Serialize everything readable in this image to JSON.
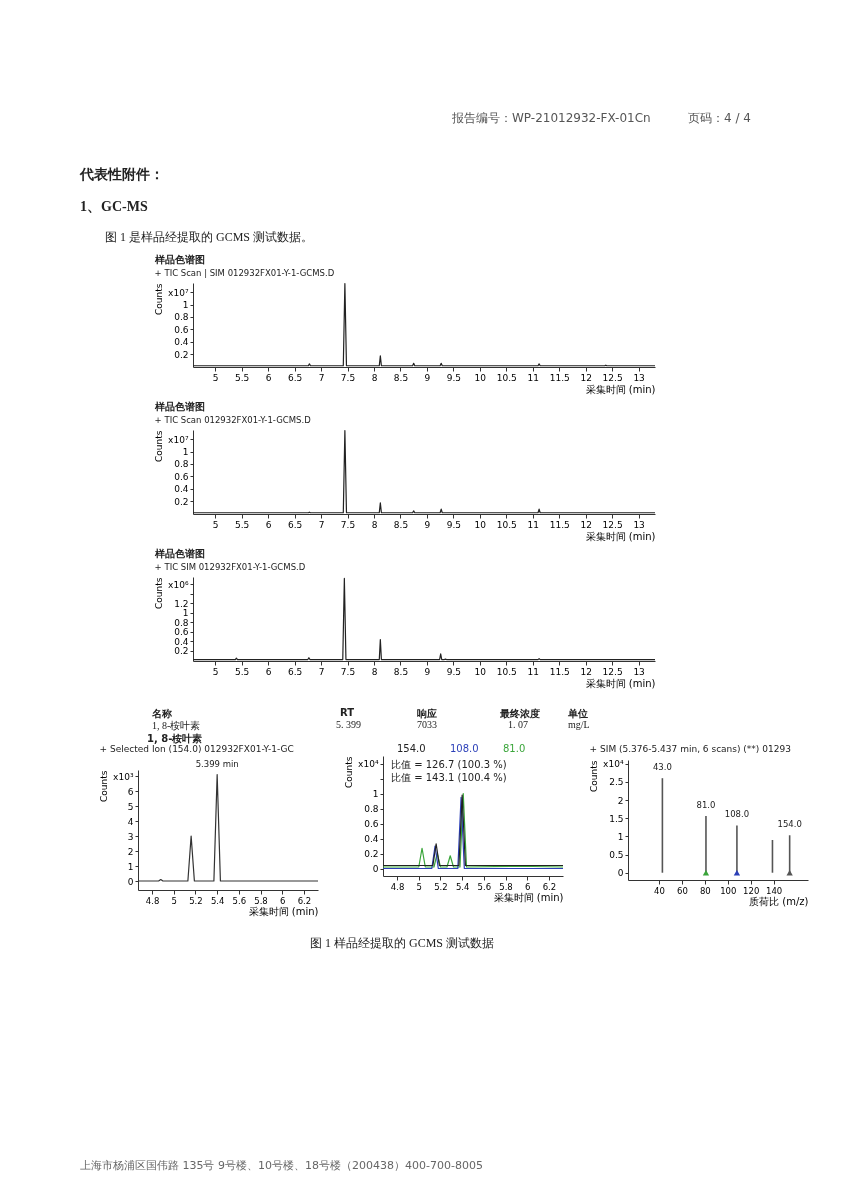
{
  "chart_data": [
    {
      "type": "other",
      "annotations": [
        "报告编号：WP-21012932-FX-01Cn",
        "页码：4 / 4",
        "代表性附件：",
        "1、GC-MS",
        "图 1 是样品经提取的 GCMS 测试数据。"
      ]
    },
    {
      "type": "line",
      "title": "样品色谱图",
      "subtitle": "+ TIC Scan | SIM 012932FX01-Y-1-GCMS.D",
      "ylabel": "Counts",
      "xlabel": "采集时间 (min)",
      "xlim": [
        4.58,
        13.31
      ],
      "xticks": [
        5,
        5.5,
        6,
        6.5,
        7,
        7.5,
        8,
        8.5,
        9,
        9.5,
        10,
        10.5,
        11,
        11.5,
        12,
        12.5,
        13
      ],
      "ylim": [
        -0.01,
        1.35
      ],
      "yticks": [
        0.2,
        0.4,
        0.6,
        0.8,
        1,
        {
          "value": 1.2,
          "label": "x10⁷"
        }
      ],
      "grid": false,
      "x": [
        4.58,
        5,
        5.4,
        6,
        6.76,
        6.78,
        6.8,
        7.42,
        7.45,
        7.48,
        8.1,
        8.12,
        8.14,
        8.73,
        8.75,
        8.77,
        9.25,
        9.27,
        9.29,
        10,
        11.1,
        11.12,
        11.14,
        12.36,
        12.38,
        12.4,
        13.31
      ],
      "series": [
        {
          "color": "#222222",
          "values": [
            0.01,
            0.01,
            0.01,
            0.01,
            0.01,
            0.04,
            0.01,
            0.01,
            1.34,
            0.01,
            0.01,
            0.17,
            0.01,
            0.01,
            0.05,
            0.01,
            0.01,
            0.05,
            0.01,
            0.01,
            0.01,
            0.04,
            0.01,
            0.01,
            0.02,
            0.01,
            0.01
          ]
        }
      ]
    },
    {
      "type": "line",
      "title": "样品色谱图",
      "subtitle": "+ TIC Scan 012932FX01-Y-1-GCMS.D",
      "ylabel": "Counts",
      "xlabel": "采集时间 (min)",
      "xlim": [
        4.58,
        13.31
      ],
      "xticks": [
        5,
        5.5,
        6,
        6.5,
        7,
        7.5,
        8,
        8.5,
        9,
        9.5,
        10,
        10.5,
        11,
        11.5,
        12,
        12.5,
        13
      ],
      "ylim": [
        -0.01,
        1.35
      ],
      "yticks": [
        0.2,
        0.4,
        0.6,
        0.8,
        1,
        {
          "value": 1.2,
          "label": "x10⁷"
        }
      ],
      "grid": false,
      "x": [
        4.58,
        5,
        5.4,
        6,
        6.76,
        6.78,
        6.8,
        7.42,
        7.45,
        7.48,
        8.1,
        8.12,
        8.14,
        8.73,
        8.75,
        8.77,
        9.25,
        9.27,
        9.29,
        10,
        11.1,
        11.12,
        11.14,
        12,
        13.31
      ],
      "series": [
        {
          "color": "#222222",
          "values": [
            0.01,
            0.01,
            0.01,
            0.01,
            0.01,
            0.02,
            0.01,
            0.01,
            1.34,
            0.01,
            0.01,
            0.17,
            0.01,
            0.01,
            0.04,
            0.01,
            0.01,
            0.07,
            0.01,
            0.01,
            0.01,
            0.07,
            0.01,
            0.01,
            0.01
          ]
        }
      ]
    },
    {
      "type": "line",
      "title": "样品色谱图",
      "subtitle": "+ TIC SIM 012932FX01-Y-1-GCMS.D",
      "ylabel": "Counts",
      "xlabel": "采集时间 (min)",
      "xlim": [
        4.58,
        13.31
      ],
      "xticks": [
        5,
        5.5,
        6,
        6.5,
        7,
        7.5,
        8,
        8.5,
        9,
        9.5,
        10,
        10.5,
        11,
        11.5,
        12,
        12.5,
        13
      ],
      "ylim": [
        -0.02,
        1.75
      ],
      "yticks": [
        0.2,
        0.4,
        0.6,
        0.8,
        1,
        1.2,
        {
          "value": 1.4,
          "label": null
        },
        {
          "value": 1.6,
          "label": "x10⁶"
        }
      ],
      "grid": false,
      "x": [
        4.58,
        5,
        5.38,
        5.4,
        5.42,
        6,
        6.75,
        6.77,
        6.79,
        7.41,
        7.44,
        7.47,
        8.1,
        8.12,
        8.14,
        9.24,
        9.26,
        9.28,
        9.33,
        9.35,
        9.37,
        11.1,
        11.12,
        11.14,
        13.31
      ],
      "series": [
        {
          "color": "#222222",
          "values": [
            0.01,
            0.01,
            0.01,
            0.04,
            0.01,
            0.01,
            0.01,
            0.05,
            0.01,
            0.01,
            1.72,
            0.01,
            0.01,
            0.43,
            0.01,
            0.01,
            0.13,
            0.01,
            0.01,
            0.02,
            0.01,
            0.01,
            0.03,
            0.01,
            0.01
          ]
        }
      ]
    },
    {
      "type": "other",
      "annotations": [
        "名称",
        "RT",
        "响应",
        "最终浓度",
        "单位",
        "1, 8-桉叶素",
        "5. 399",
        "7033",
        "1. 07",
        "mg/L",
        "1, 8-桉叶素"
      ]
    },
    {
      "type": "line",
      "title": "+ Selected Ion (154.0) 012932FX01-Y-1-GC",
      "ylabel": "Counts",
      "xlabel": "采集时间 (min)",
      "xlim": [
        4.67,
        6.33
      ],
      "xticks": [
        4.8,
        5,
        5.2,
        5.4,
        5.6,
        5.8,
        6,
        6.2
      ],
      "ylim": [
        -0.6,
        7.4
      ],
      "yticks": [
        0,
        1,
        2,
        3,
        4,
        5,
        6,
        {
          "value": 7,
          "label": "x10³"
        }
      ],
      "grid": false,
      "annotations": [
        {
          "text": "5.399 min",
          "x": 5.4,
          "y": 7.1
        }
      ],
      "x": [
        4.67,
        4.86,
        4.88,
        4.9,
        5.13,
        5.16,
        5.19,
        5.37,
        5.4,
        5.43,
        6.33
      ],
      "series": [
        {
          "color": "#333333",
          "values": [
            0,
            0,
            0.1,
            0,
            0,
            3,
            0,
            0,
            7.1,
            0,
            0
          ]
        }
      ]
    },
    {
      "type": "line",
      "ylabel": "Counts",
      "xlabel": "采集时间 (min)",
      "xlim": [
        4.67,
        6.33
      ],
      "xticks": [
        4.8,
        5,
        5.2,
        5.4,
        5.6,
        5.8,
        6,
        6.2
      ],
      "ylim": [
        -0.1,
        1.5
      ],
      "yticks": [
        0,
        0.2,
        0.4,
        0.6,
        0.8,
        1,
        {
          "value": 1.2,
          "label": null
        },
        {
          "value": 1.4,
          "label": "x10⁴"
        }
      ],
      "grid": false,
      "legend": "top",
      "annotations": [
        "比值 = 126.7 (100.3 %)",
        "比值 = 143.1 (100.4 %)"
      ],
      "series": [
        {
          "name": "154.0",
          "color": "#222222",
          "x": [
            4.67,
            5.13,
            5.16,
            5.19,
            5.37,
            5.4,
            5.43,
            6.33
          ],
          "values": [
            0.04,
            0.04,
            0.33,
            0.04,
            0.04,
            0.98,
            0.04,
            0.04
          ]
        },
        {
          "name": "108.0",
          "color": "#2b3fb8",
          "x": [
            4.67,
            5.12,
            5.15,
            5.18,
            5.36,
            5.39,
            5.42,
            6.33
          ],
          "values": [
            0,
            0,
            0.3,
            0,
            0,
            0.95,
            0,
            0
          ]
        },
        {
          "name": "81.0",
          "color": "#3aa53a",
          "x": [
            4.67,
            5.0,
            5.03,
            5.06,
            5.14,
            5.17,
            5.2,
            5.26,
            5.29,
            5.32,
            5.38,
            5.41,
            5.44,
            5.9,
            6.33
          ],
          "values": [
            0.02,
            0.02,
            0.27,
            0.02,
            0.02,
            0.2,
            0.02,
            0.02,
            0.17,
            0.02,
            0.02,
            1.0,
            0.02,
            0.03,
            0.02
          ]
        }
      ]
    },
    {
      "type": "bar",
      "title": "+ SIM (5.376-5.437 min, 6 scans) (**) 01293",
      "ylabel": "Counts",
      "xlabel": "质荷比 (m/z)",
      "xlim": [
        13,
        170
      ],
      "xticks": [
        40,
        60,
        80,
        100,
        120,
        140
      ],
      "ylim": [
        -0.2,
        3.1
      ],
      "yticks": [
        0,
        0.5,
        1,
        1.5,
        2,
        2.5,
        {
          "value": 3,
          "label": "x10⁴"
        }
      ],
      "grid": false,
      "annotations": [
        {
          "text": "43.0",
          "x": 43,
          "y": 2.6
        },
        {
          "text": "81.0",
          "x": 81,
          "y": 1.56
        },
        {
          "text": "108.0",
          "x": 108,
          "y": 1.3
        },
        {
          "text": "154.0",
          "x": 154,
          "y": 1.03
        }
      ],
      "series": [
        {
          "color": "#555555",
          "x": [
            43,
            81,
            108,
            139,
            154
          ],
          "values": [
            2.6,
            1.56,
            1.3,
            0.9,
            1.03
          ]
        },
        {
          "type": "scatter",
          "marker": "triangle",
          "colors": [
            "#3aa53a",
            "#2b3fb8",
            "#555555"
          ],
          "x": [
            81,
            108,
            154
          ],
          "values": [
            0,
            0,
            0
          ]
        }
      ]
    },
    {
      "type": "other",
      "annotations": [
        "图 1  样品经提取的 GCMS 测试数据",
        "上海市杨浦区国伟路 135号 9号楼、10号楼、18号楼（200438）400-700-8005"
      ]
    }
  ]
}
